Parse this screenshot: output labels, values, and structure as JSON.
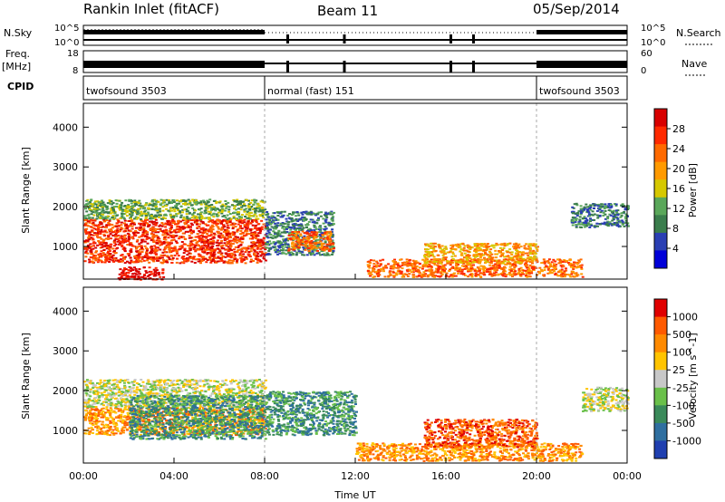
{
  "header": {
    "title": "Rankin Inlet (fitACF)",
    "beam": "Beam 11",
    "date": "05/Sep/2014"
  },
  "status_panels": {
    "nsky_label": "N.Sky",
    "nsearch_label": "N.Search",
    "freq_label": "Freq.",
    "freq_unit": "[MHz]",
    "nave_label": "Nave",
    "cpid_label": "CPID",
    "nsky_left_ticks": [
      "10^5",
      "10^0"
    ],
    "nsky_right_ticks": [
      "10^5",
      "10^0"
    ],
    "freq_left_ticks": [
      "18",
      "8"
    ],
    "nave_right_ticks": [
      "60",
      "0"
    ],
    "cpid_segments": [
      {
        "label": "twofsound 3503",
        "start_hr": 0,
        "end_hr": 8
      },
      {
        "label": "normal (fast) 151",
        "start_hr": 8,
        "end_hr": 20
      },
      {
        "label": "twofsound 3503",
        "start_hr": 20,
        "end_hr": 24
      }
    ],
    "nave_dips_hr": [
      9.0,
      11.5,
      16.2,
      17.2
    ]
  },
  "chart_data": [
    {
      "type": "heatmap",
      "title": "",
      "xlabel": "Time UT",
      "ylabel": "Slant Range [km]",
      "xlim_hr": [
        0,
        24
      ],
      "ylim": [
        180,
        4600
      ],
      "x_tick_labels": [
        "00:00",
        "04:00",
        "08:00",
        "12:00",
        "16:00",
        "20:00",
        "00:00"
      ],
      "y_tick_labels": [
        "1000",
        "2000",
        "3000",
        "4000"
      ],
      "colorbar": {
        "label": "Power [dB]",
        "tick_labels": [
          "28",
          "24",
          "20",
          "16",
          "12",
          "8",
          "4"
        ],
        "colors": [
          "#0000d8",
          "#2a3fb3",
          "#3a7d4c",
          "#5aa75a",
          "#d6c800",
          "#ff9a00",
          "#ff6a00",
          "#ff2a00",
          "#d80000"
        ]
      },
      "regions": [
        {
          "t0": 0.0,
          "t1": 8.0,
          "r0": 600,
          "r1": 1700,
          "level": 7
        },
        {
          "t0": 0.0,
          "t1": 8.0,
          "r0": 1700,
          "r1": 2200,
          "level": 3
        },
        {
          "t0": 1.5,
          "t1": 3.5,
          "r0": 180,
          "r1": 500,
          "level": 8
        },
        {
          "t0": 8.0,
          "t1": 11.0,
          "r0": 800,
          "r1": 1900,
          "level": 2
        },
        {
          "t0": 9.0,
          "t1": 11.0,
          "r0": 900,
          "r1": 1400,
          "level": 6
        },
        {
          "t0": 12.5,
          "t1": 22.0,
          "r0": 250,
          "r1": 700,
          "level": 6
        },
        {
          "t0": 15.0,
          "t1": 20.0,
          "r0": 600,
          "r1": 1100,
          "level": 5
        },
        {
          "t0": 21.5,
          "t1": 24.0,
          "r0": 1500,
          "r1": 2100,
          "level": 2
        }
      ]
    },
    {
      "type": "heatmap",
      "title": "",
      "xlabel": "Time UT",
      "ylabel": "Slant Range [km]",
      "xlim_hr": [
        0,
        24
      ],
      "ylim": [
        180,
        4600
      ],
      "x_tick_labels": [
        "00:00",
        "04:00",
        "08:00",
        "12:00",
        "16:00",
        "20:00",
        "00:00"
      ],
      "y_tick_labels": [
        "1000",
        "2000",
        "3000",
        "4000"
      ],
      "colorbar": {
        "label": "Velocity [m s^-1]",
        "tick_labels": [
          "1000",
          "500",
          "100",
          "25",
          "-25",
          "-100",
          "-500",
          "-1000"
        ],
        "colors": [
          "#1f3fb0",
          "#2f6fa0",
          "#3a8a5a",
          "#6ac04a",
          "#c8c8c8",
          "#ffc400",
          "#ff8a00",
          "#ff5a00",
          "#e00000"
        ]
      },
      "regions": [
        {
          "t0": 0.0,
          "t1": 8.0,
          "r0": 900,
          "r1": 1600,
          "level": 6
        },
        {
          "t0": 0.0,
          "t1": 8.0,
          "r0": 1600,
          "r1": 2300,
          "level": 4
        },
        {
          "t0": 2.0,
          "t1": 8.0,
          "r0": 800,
          "r1": 1900,
          "level": 2
        },
        {
          "t0": 8.0,
          "t1": 12.0,
          "r0": 900,
          "r1": 2000,
          "level": 2
        },
        {
          "t0": 12.0,
          "t1": 22.0,
          "r0": 250,
          "r1": 700,
          "level": 6
        },
        {
          "t0": 15.0,
          "t1": 20.0,
          "r0": 600,
          "r1": 1300,
          "level": 7
        },
        {
          "t0": 22.0,
          "t1": 24.0,
          "r0": 1500,
          "r1": 2100,
          "level": 4
        }
      ]
    }
  ]
}
